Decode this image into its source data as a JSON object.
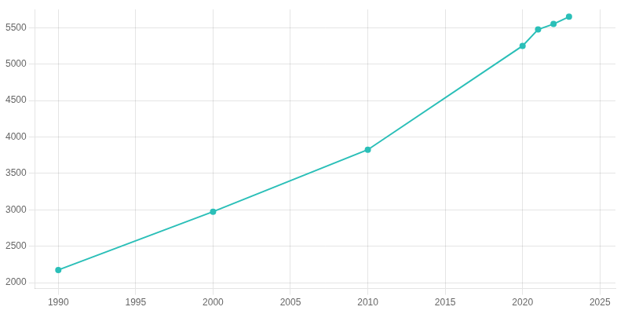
{
  "chart_data": {
    "type": "line",
    "x": [
      1990,
      2000,
      2010,
      2020,
      2021,
      2022,
      2023
    ],
    "values": [
      2175,
      2975,
      3825,
      5250,
      5475,
      5550,
      5650
    ],
    "color": "#2bbfb8",
    "marker": "circle",
    "xlim": [
      1988.5,
      2026
    ],
    "ylim": [
      1920,
      5750
    ],
    "xticks": [
      1990,
      1995,
      2000,
      2005,
      2010,
      2015,
      2020,
      2025
    ],
    "yticks": [
      2000,
      2500,
      3000,
      3500,
      4000,
      4500,
      5000,
      5500
    ],
    "grid": true
  }
}
